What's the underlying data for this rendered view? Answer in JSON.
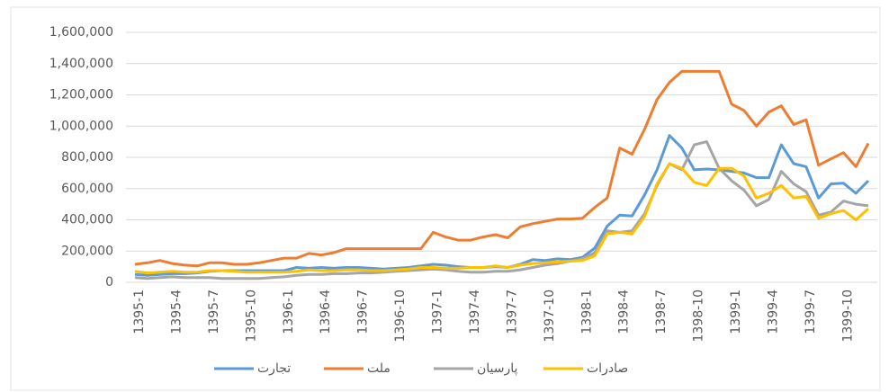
{
  "chart_data": {
    "type": "line",
    "categories": [
      "1395-1",
      null,
      null,
      "1395-4",
      null,
      null,
      "1395-7",
      null,
      null,
      "1395-10",
      null,
      null,
      "1396-1",
      null,
      null,
      "1396-4",
      null,
      null,
      "1396-7",
      null,
      null,
      "1396-10",
      null,
      null,
      "1397-1",
      null,
      null,
      "1397-4",
      null,
      null,
      "1397-7",
      null,
      null,
      "1397-10",
      null,
      null,
      "1398-1",
      null,
      null,
      "1398-4",
      null,
      null,
      "1398-7",
      null,
      null,
      "1398-10",
      null,
      null,
      "1399-1",
      null,
      null,
      "1399-4",
      null,
      null,
      "1399-7",
      null,
      null,
      "1399-10",
      null,
      null
    ],
    "series": [
      {
        "name": "تجارت",
        "color": "#5b9bd5",
        "values": [
          50000,
          45000,
          50000,
          55000,
          55000,
          60000,
          70000,
          75000,
          75000,
          75000,
          75000,
          75000,
          75000,
          95000,
          90000,
          95000,
          90000,
          95000,
          95000,
          90000,
          85000,
          90000,
          95000,
          105000,
          115000,
          110000,
          100000,
          95000,
          95000,
          100000,
          95000,
          115000,
          145000,
          140000,
          150000,
          145000,
          160000,
          220000,
          360000,
          430000,
          425000,
          560000,
          720000,
          940000,
          860000,
          720000,
          725000,
          720000,
          710000,
          700000,
          670000,
          670000,
          880000,
          760000,
          740000,
          540000,
          630000,
          635000,
          570000,
          650000
        ]
      },
      {
        "name": "ملت",
        "color": "#ed7d31",
        "values": [
          115000,
          125000,
          140000,
          120000,
          110000,
          105000,
          125000,
          125000,
          115000,
          115000,
          125000,
          140000,
          155000,
          155000,
          185000,
          175000,
          190000,
          215000,
          215000,
          215000,
          215000,
          215000,
          215000,
          215000,
          320000,
          290000,
          270000,
          270000,
          290000,
          305000,
          285000,
          355000,
          375000,
          390000,
          405000,
          405000,
          410000,
          480000,
          540000,
          860000,
          820000,
          980000,
          1170000,
          1280000,
          1350000,
          1350000,
          1350000,
          1350000,
          1140000,
          1100000,
          1000000,
          1090000,
          1130000,
          1010000,
          1040000,
          750000,
          790000,
          830000,
          740000,
          890000
        ]
      },
      {
        "name": "پارسیان",
        "color": "#a5a5a5",
        "values": [
          30000,
          25000,
          30000,
          35000,
          30000,
          30000,
          30000,
          25000,
          25000,
          25000,
          25000,
          30000,
          35000,
          45000,
          50000,
          50000,
          55000,
          55000,
          60000,
          60000,
          65000,
          70000,
          75000,
          80000,
          85000,
          80000,
          70000,
          65000,
          65000,
          70000,
          70000,
          80000,
          95000,
          110000,
          120000,
          135000,
          150000,
          190000,
          330000,
          320000,
          330000,
          440000,
          620000,
          760000,
          720000,
          880000,
          900000,
          730000,
          650000,
          590000,
          490000,
          530000,
          710000,
          630000,
          580000,
          430000,
          450000,
          520000,
          500000,
          490000
        ]
      },
      {
        "name": "صادرات",
        "color": "#ffc000",
        "values": [
          70000,
          60000,
          65000,
          70000,
          65000,
          65000,
          75000,
          75000,
          70000,
          65000,
          65000,
          65000,
          65000,
          70000,
          80000,
          75000,
          75000,
          80000,
          80000,
          75000,
          75000,
          80000,
          85000,
          95000,
          95000,
          90000,
          90000,
          95000,
          95000,
          105000,
          95000,
          110000,
          120000,
          125000,
          130000,
          135000,
          140000,
          170000,
          310000,
          320000,
          310000,
          420000,
          630000,
          760000,
          730000,
          640000,
          620000,
          730000,
          730000,
          680000,
          540000,
          570000,
          620000,
          540000,
          550000,
          410000,
          440000,
          460000,
          400000,
          470000
        ]
      }
    ],
    "ylim": [
      0,
      1600000
    ],
    "yticks": [
      0,
      {
        "value": 200000,
        "label": "200,000"
      },
      {
        "value": 400000,
        "label": "400,000"
      },
      {
        "value": 600000,
        "label": "600,000"
      },
      {
        "value": 800000,
        "label": "800,000"
      },
      {
        "value": 1000000,
        "label": "1,000,000"
      },
      {
        "value": 1200000,
        "label": "1,200,000"
      },
      {
        "value": 1400000,
        "label": "1,400,000"
      },
      {
        "value": 1600000,
        "label": "1,600,000"
      }
    ],
    "grid": true,
    "legend": "bottom"
  }
}
